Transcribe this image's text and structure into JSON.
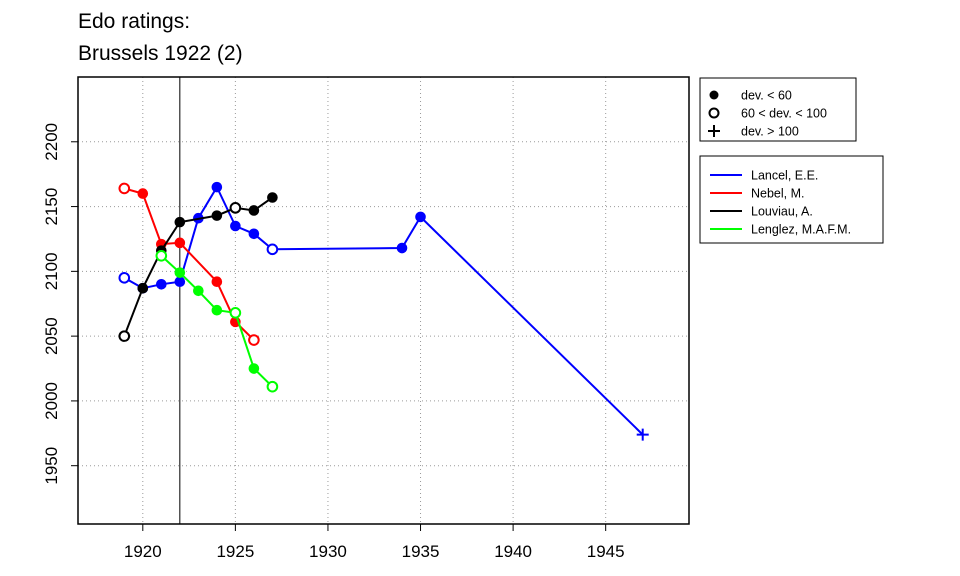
{
  "chart_data": {
    "type": "line",
    "title": [
      "Edo ratings:",
      "Brussels 1922 (2)"
    ],
    "xlabel": "",
    "ylabel": "",
    "xlim": [
      1916.5,
      1949.5
    ],
    "ylim": [
      1905,
      2250
    ],
    "x_ticks": [
      1920,
      1925,
      1930,
      1935,
      1940,
      1945
    ],
    "y_ticks": [
      1950,
      2000,
      2050,
      2100,
      2150,
      2200
    ],
    "grid": true,
    "reference_line_x": 1922,
    "legend_position": "right",
    "marker_legend": [
      {
        "symbol": "filled-circle",
        "label": "dev. < 60"
      },
      {
        "symbol": "open-circle",
        "label": "60 < dev. < 100"
      },
      {
        "symbol": "plus",
        "label": "dev. > 100"
      }
    ],
    "series": [
      {
        "name": "Lancel, E.E.",
        "color": "#0000ff",
        "points": [
          {
            "x": 1919,
            "y": 2095,
            "m": "open"
          },
          {
            "x": 1920,
            "y": 2087,
            "m": "filled"
          },
          {
            "x": 1921,
            "y": 2090,
            "m": "filled"
          },
          {
            "x": 1922,
            "y": 2092,
            "m": "filled"
          },
          {
            "x": 1923,
            "y": 2141,
            "m": "filled"
          },
          {
            "x": 1924,
            "y": 2165,
            "m": "filled"
          },
          {
            "x": 1925,
            "y": 2135,
            "m": "filled"
          },
          {
            "x": 1926,
            "y": 2129,
            "m": "filled"
          },
          {
            "x": 1927,
            "y": 2117,
            "m": "open"
          },
          {
            "x": 1934,
            "y": 2118,
            "m": "filled"
          },
          {
            "x": 1935,
            "y": 2142,
            "m": "filled"
          },
          {
            "x": 1947,
            "y": 1974,
            "m": "plus"
          }
        ]
      },
      {
        "name": "Nebel, M.",
        "color": "#ff0000",
        "points": [
          {
            "x": 1919,
            "y": 2164,
            "m": "open"
          },
          {
            "x": 1920,
            "y": 2160,
            "m": "filled"
          },
          {
            "x": 1921,
            "y": 2121,
            "m": "filled"
          },
          {
            "x": 1922,
            "y": 2122,
            "m": "filled"
          },
          {
            "x": 1924,
            "y": 2092,
            "m": "filled"
          },
          {
            "x": 1925,
            "y": 2061,
            "m": "filled"
          },
          {
            "x": 1926,
            "y": 2047,
            "m": "open"
          }
        ]
      },
      {
        "name": "Louviau, A.",
        "color": "#000000",
        "points": [
          {
            "x": 1919,
            "y": 2050,
            "m": "open"
          },
          {
            "x": 1920,
            "y": 2087,
            "m": "filled"
          },
          {
            "x": 1921,
            "y": 2116,
            "m": "filled"
          },
          {
            "x": 1922,
            "y": 2138,
            "m": "filled"
          },
          {
            "x": 1924,
            "y": 2143,
            "m": "filled"
          },
          {
            "x": 1925,
            "y": 2149,
            "m": "open"
          },
          {
            "x": 1926,
            "y": 2147,
            "m": "filled"
          },
          {
            "x": 1927,
            "y": 2157,
            "m": "filled"
          }
        ]
      },
      {
        "name": "Lenglez, M.A.F.M.",
        "color": "#00ff00",
        "points": [
          {
            "x": 1921,
            "y": 2112,
            "m": "open"
          },
          {
            "x": 1922,
            "y": 2099,
            "m": "filled"
          },
          {
            "x": 1923,
            "y": 2085,
            "m": "filled"
          },
          {
            "x": 1924,
            "y": 2070,
            "m": "filled"
          },
          {
            "x": 1925,
            "y": 2068,
            "m": "open"
          },
          {
            "x": 1926,
            "y": 2025,
            "m": "filled"
          },
          {
            "x": 1927,
            "y": 2011,
            "m": "open"
          }
        ]
      }
    ]
  }
}
